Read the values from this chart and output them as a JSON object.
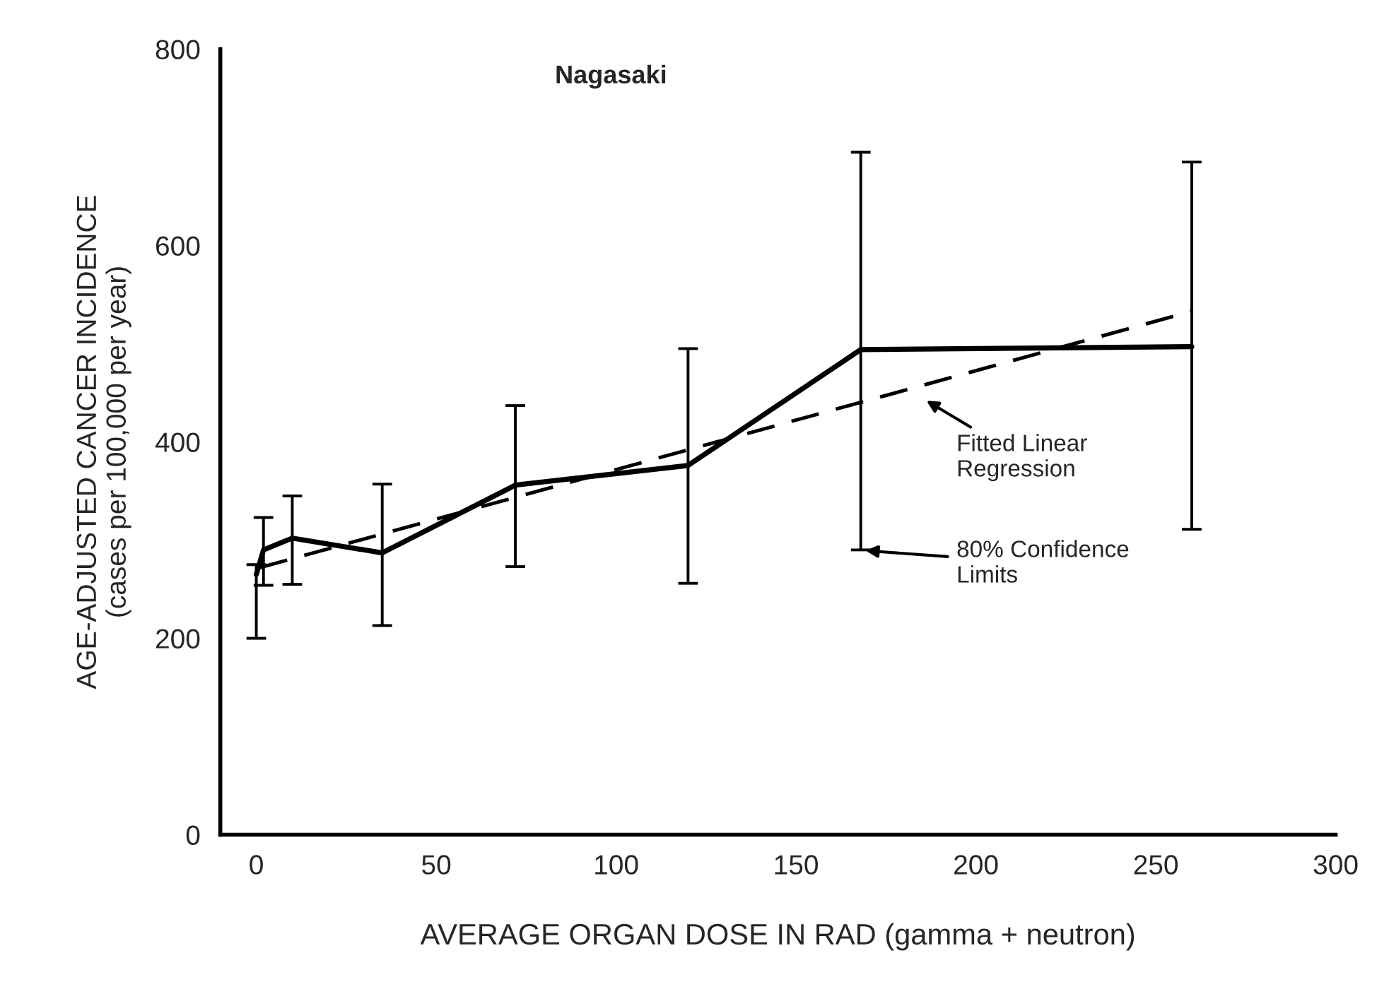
{
  "chart_data": {
    "type": "line",
    "title": "Nagasaki",
    "xlabel": "AVERAGE ORGAN DOSE IN RAD (gamma + neutron)",
    "ylabel": "AGE-ADJUSTED CANCER INCIDENCE\n(cases per 100,000 per year)",
    "series": [
      {
        "color": "#000000",
        "line_style": "solid",
        "x": [
          0,
          2,
          10,
          35,
          72,
          120,
          168,
          260
        ],
        "values": [
          265,
          290,
          302,
          287,
          356,
          376,
          494,
          497
        ],
        "errors": [
          [
            200,
            275
          ],
          [
            254,
            323
          ],
          [
            255,
            345
          ],
          [
            213,
            357
          ],
          [
            273,
            437
          ],
          [
            256,
            495
          ],
          [
            290,
            695
          ],
          [
            311,
            685
          ]
        ]
      },
      {
        "color": "#000000",
        "line_style": "dashed",
        "x": [
          1,
          260
        ],
        "values": [
          272,
          533
        ]
      }
    ],
    "annotations": [
      "Fitted Linear\nRegression",
      "80% Confidence\nLimits"
    ],
    "xlim": [
      -10,
      300
    ],
    "ylim": [
      0,
      800
    ],
    "xticks": [
      0,
      50,
      100,
      150,
      200,
      250,
      300
    ],
    "yticks": [
      0,
      200,
      400,
      600,
      800
    ],
    "grid": false,
    "legend": false,
    "marker": "none"
  }
}
